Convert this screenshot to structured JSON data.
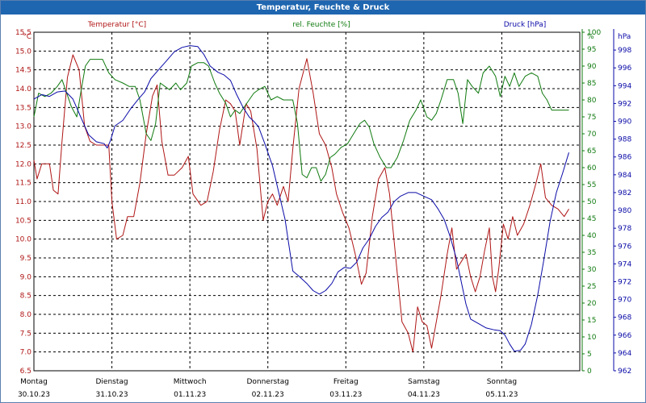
{
  "window": {
    "title": "Temperatur, Feuchte & Druck"
  },
  "colors": {
    "temp": "#b01515",
    "hum": "#0f7a0f",
    "press": "#0a0aa8",
    "grid": "#000000"
  },
  "chart_data": {
    "type": "line",
    "title": "Temperatur, Feuchte & Druck",
    "grid": true,
    "x_labels": [
      {
        "day": "Montag",
        "date": "30.10.23"
      },
      {
        "day": "Dienstag",
        "date": "31.10.23"
      },
      {
        "day": "Mittwoch",
        "date": "01.11.23"
      },
      {
        "day": "Donnerstag",
        "date": "02.11.23"
      },
      {
        "day": "Freitag",
        "date": "03.11.23"
      },
      {
        "day": "Samstag",
        "date": "04.11.23"
      },
      {
        "day": "Sonntag",
        "date": "05.11.23"
      }
    ],
    "x_days": 7,
    "axes": {
      "temp": {
        "label": "Temperatur [°C]",
        "unit": "°C",
        "min": 6.5,
        "max": 15.5,
        "step": 0.5,
        "decimals": 1
      },
      "hum": {
        "label": "rel. Feuchte [%]",
        "unit": "%",
        "min": 0,
        "max": 100,
        "step": 5,
        "decimals": 0
      },
      "press": {
        "label": "Druck [hPa]",
        "unit": "hPa",
        "min": 962,
        "max": 1000,
        "step": 2,
        "decimals": 0
      }
    },
    "series": [
      {
        "name": "Temperatur [°C]",
        "axis": "temp",
        "color": "#b01515",
        "points": [
          [
            0,
            12.1
          ],
          [
            0.04,
            11.6
          ],
          [
            0.1,
            12.0
          ],
          [
            0.2,
            12.0
          ],
          [
            0.25,
            11.3
          ],
          [
            0.31,
            11.2
          ],
          [
            0.36,
            12.6
          ],
          [
            0.43,
            14.3
          ],
          [
            0.5,
            14.9
          ],
          [
            0.58,
            14.5
          ],
          [
            0.65,
            13.0
          ],
          [
            0.72,
            12.6
          ],
          [
            0.8,
            12.5
          ],
          [
            0.88,
            12.5
          ],
          [
            0.96,
            12.5
          ],
          [
            1.0,
            11.0
          ],
          [
            1.06,
            10.0
          ],
          [
            1.14,
            10.1
          ],
          [
            1.2,
            10.6
          ],
          [
            1.28,
            10.6
          ],
          [
            1.36,
            11.5
          ],
          [
            1.44,
            12.8
          ],
          [
            1.52,
            13.8
          ],
          [
            1.58,
            14.1
          ],
          [
            1.64,
            12.6
          ],
          [
            1.72,
            11.7
          ],
          [
            1.8,
            11.7
          ],
          [
            1.9,
            11.9
          ],
          [
            1.98,
            12.2
          ],
          [
            2.04,
            11.2
          ],
          [
            2.14,
            10.9
          ],
          [
            2.22,
            11.0
          ],
          [
            2.3,
            11.8
          ],
          [
            2.38,
            12.9
          ],
          [
            2.46,
            13.7
          ],
          [
            2.52,
            13.6
          ],
          [
            2.58,
            13.4
          ],
          [
            2.64,
            12.5
          ],
          [
            2.72,
            13.6
          ],
          [
            2.78,
            13.4
          ],
          [
            2.86,
            12.4
          ],
          [
            2.94,
            10.5
          ],
          [
            3.0,
            11.0
          ],
          [
            3.06,
            11.2
          ],
          [
            3.12,
            10.9
          ],
          [
            3.2,
            11.4
          ],
          [
            3.26,
            11.0
          ],
          [
            3.32,
            12.4
          ],
          [
            3.4,
            14.0
          ],
          [
            3.5,
            14.8
          ],
          [
            3.58,
            13.9
          ],
          [
            3.66,
            12.8
          ],
          [
            3.74,
            12.5
          ],
          [
            3.82,
            11.9
          ],
          [
            3.88,
            11.2
          ],
          [
            3.96,
            10.7
          ],
          [
            4.04,
            10.3
          ],
          [
            4.12,
            9.6
          ],
          [
            4.2,
            8.8
          ],
          [
            4.26,
            9.1
          ],
          [
            4.34,
            10.6
          ],
          [
            4.42,
            11.6
          ],
          [
            4.5,
            11.9
          ],
          [
            4.56,
            11.2
          ],
          [
            4.64,
            9.5
          ],
          [
            4.72,
            7.8
          ],
          [
            4.8,
            7.5
          ],
          [
            4.86,
            7.0
          ],
          [
            4.92,
            8.2
          ],
          [
            4.98,
            7.8
          ],
          [
            5.04,
            7.7
          ],
          [
            5.1,
            7.1
          ],
          [
            5.16,
            7.8
          ],
          [
            5.22,
            8.5
          ],
          [
            5.3,
            9.6
          ],
          [
            5.36,
            10.3
          ],
          [
            5.42,
            9.2
          ],
          [
            5.48,
            9.4
          ],
          [
            5.54,
            9.6
          ],
          [
            5.6,
            9.0
          ],
          [
            5.66,
            8.6
          ],
          [
            5.72,
            9.0
          ],
          [
            5.78,
            9.7
          ],
          [
            5.84,
            10.3
          ],
          [
            5.88,
            9.0
          ],
          [
            5.92,
            8.6
          ],
          [
            5.96,
            9.2
          ],
          [
            6.02,
            10.4
          ],
          [
            6.08,
            10.0
          ],
          [
            6.14,
            10.6
          ],
          [
            6.2,
            10.1
          ],
          [
            6.28,
            10.4
          ],
          [
            6.36,
            10.9
          ],
          [
            6.44,
            11.5
          ],
          [
            6.5,
            12.0
          ],
          [
            6.56,
            11.1
          ],
          [
            6.64,
            10.9
          ],
          [
            6.72,
            10.8
          ],
          [
            6.8,
            10.6
          ],
          [
            6.86,
            10.8
          ]
        ]
      },
      {
        "name": "rel. Feuchte [%]",
        "axis": "hum",
        "color": "#0f7a0f",
        "points": [
          [
            0,
            75
          ],
          [
            0.06,
            82
          ],
          [
            0.14,
            81
          ],
          [
            0.22,
            82
          ],
          [
            0.3,
            84
          ],
          [
            0.36,
            86
          ],
          [
            0.42,
            82
          ],
          [
            0.48,
            78
          ],
          [
            0.55,
            75
          ],
          [
            0.6,
            82
          ],
          [
            0.66,
            90
          ],
          [
            0.72,
            92
          ],
          [
            0.8,
            92
          ],
          [
            0.88,
            92
          ],
          [
            0.96,
            88
          ],
          [
            1.04,
            86
          ],
          [
            1.14,
            85
          ],
          [
            1.22,
            84
          ],
          [
            1.3,
            84
          ],
          [
            1.36,
            80
          ],
          [
            1.44,
            70
          ],
          [
            1.5,
            68
          ],
          [
            1.56,
            73
          ],
          [
            1.62,
            85
          ],
          [
            1.68,
            84
          ],
          [
            1.74,
            83
          ],
          [
            1.82,
            85
          ],
          [
            1.88,
            83
          ],
          [
            1.96,
            85
          ],
          [
            2.02,
            90
          ],
          [
            2.1,
            91
          ],
          [
            2.18,
            91
          ],
          [
            2.24,
            90
          ],
          [
            2.32,
            85
          ],
          [
            2.38,
            82
          ],
          [
            2.46,
            79
          ],
          [
            2.52,
            75
          ],
          [
            2.58,
            77
          ],
          [
            2.64,
            76
          ],
          [
            2.7,
            78
          ],
          [
            2.76,
            80
          ],
          [
            2.82,
            82
          ],
          [
            2.88,
            83
          ],
          [
            2.96,
            84
          ],
          [
            3.04,
            80
          ],
          [
            3.12,
            81
          ],
          [
            3.2,
            80
          ],
          [
            3.26,
            80
          ],
          [
            3.32,
            80
          ],
          [
            3.38,
            73
          ],
          [
            3.44,
            58
          ],
          [
            3.5,
            57
          ],
          [
            3.56,
            60
          ],
          [
            3.62,
            60
          ],
          [
            3.68,
            56
          ],
          [
            3.74,
            58
          ],
          [
            3.8,
            63
          ],
          [
            3.86,
            64
          ],
          [
            3.94,
            66
          ],
          [
            4.02,
            67
          ],
          [
            4.1,
            70
          ],
          [
            4.18,
            73
          ],
          [
            4.24,
            74
          ],
          [
            4.3,
            72
          ],
          [
            4.36,
            67
          ],
          [
            4.44,
            63
          ],
          [
            4.52,
            60
          ],
          [
            4.58,
            60
          ],
          [
            4.66,
            63
          ],
          [
            4.74,
            68
          ],
          [
            4.82,
            74
          ],
          [
            4.9,
            77
          ],
          [
            4.96,
            80
          ],
          [
            5.04,
            75
          ],
          [
            5.1,
            74
          ],
          [
            5.16,
            76
          ],
          [
            5.22,
            80
          ],
          [
            5.3,
            86
          ],
          [
            5.38,
            86
          ],
          [
            5.44,
            82
          ],
          [
            5.5,
            73
          ],
          [
            5.56,
            86
          ],
          [
            5.62,
            84
          ],
          [
            5.7,
            82
          ],
          [
            5.76,
            88
          ],
          [
            5.84,
            90
          ],
          [
            5.92,
            87
          ],
          [
            5.98,
            81
          ],
          [
            6.04,
            87
          ],
          [
            6.1,
            84
          ],
          [
            6.16,
            88
          ],
          [
            6.22,
            84
          ],
          [
            6.3,
            87
          ],
          [
            6.38,
            88
          ],
          [
            6.46,
            87
          ],
          [
            6.52,
            82
          ],
          [
            6.58,
            80
          ],
          [
            6.64,
            77
          ],
          [
            6.72,
            77
          ],
          [
            6.8,
            77
          ],
          [
            6.86,
            77
          ]
        ]
      },
      {
        "name": "Druck [hPa]",
        "axis": "press",
        "color": "#0a0aa8",
        "points": [
          [
            0,
            992.5
          ],
          [
            0.1,
            993
          ],
          [
            0.2,
            992.8
          ],
          [
            0.3,
            993.3
          ],
          [
            0.4,
            993.4
          ],
          [
            0.5,
            992.5
          ],
          [
            0.6,
            990.5
          ],
          [
            0.7,
            988.5
          ],
          [
            0.8,
            987.7
          ],
          [
            0.9,
            987.5
          ],
          [
            0.94,
            987.0
          ],
          [
            0.98,
            987.8
          ],
          [
            1.04,
            989.5
          ],
          [
            1.14,
            990.1
          ],
          [
            1.24,
            991.4
          ],
          [
            1.34,
            992.5
          ],
          [
            1.42,
            993.3
          ],
          [
            1.5,
            994.8
          ],
          [
            1.6,
            995.8
          ],
          [
            1.7,
            996.8
          ],
          [
            1.8,
            997.8
          ],
          [
            1.9,
            998.3
          ],
          [
            2.0,
            998.5
          ],
          [
            2.1,
            998.4
          ],
          [
            2.18,
            997.5
          ],
          [
            2.26,
            996.2
          ],
          [
            2.36,
            995.5
          ],
          [
            2.44,
            995.2
          ],
          [
            2.52,
            994.6
          ],
          [
            2.6,
            993.0
          ],
          [
            2.68,
            991.6
          ],
          [
            2.76,
            990.5
          ],
          [
            2.82,
            990.0
          ],
          [
            2.88,
            989.4
          ],
          [
            2.96,
            987.5
          ],
          [
            3.06,
            985.0
          ],
          [
            3.14,
            982.0
          ],
          [
            3.22,
            979.0
          ],
          [
            3.28,
            975.5
          ],
          [
            3.32,
            973.2
          ],
          [
            3.4,
            972.6
          ],
          [
            3.5,
            971.8
          ],
          [
            3.58,
            971.0
          ],
          [
            3.66,
            970.6
          ],
          [
            3.74,
            971.0
          ],
          [
            3.82,
            971.8
          ],
          [
            3.9,
            973.1
          ],
          [
            3.98,
            973.6
          ],
          [
            4.06,
            973.5
          ],
          [
            4.14,
            974.2
          ],
          [
            4.22,
            975.8
          ],
          [
            4.3,
            976.8
          ],
          [
            4.38,
            978.2
          ],
          [
            4.46,
            979.2
          ],
          [
            4.54,
            979.8
          ],
          [
            4.62,
            981.0
          ],
          [
            4.7,
            981.6
          ],
          [
            4.8,
            982.0
          ],
          [
            4.9,
            982.0
          ],
          [
            5.0,
            981.6
          ],
          [
            5.1,
            981.2
          ],
          [
            5.18,
            980.2
          ],
          [
            5.26,
            979.0
          ],
          [
            5.34,
            977.0
          ],
          [
            5.42,
            974.5
          ],
          [
            5.48,
            972.0
          ],
          [
            5.54,
            969.5
          ],
          [
            5.6,
            967.8
          ],
          [
            5.7,
            967.3
          ],
          [
            5.8,
            966.8
          ],
          [
            5.9,
            966.6
          ],
          [
            5.98,
            966.5
          ],
          [
            6.04,
            966.0
          ],
          [
            6.1,
            965.0
          ],
          [
            6.16,
            964.2
          ],
          [
            6.24,
            964.3
          ],
          [
            6.3,
            965.0
          ],
          [
            6.38,
            967.2
          ],
          [
            6.46,
            970.5
          ],
          [
            6.54,
            974.5
          ],
          [
            6.62,
            978.8
          ],
          [
            6.7,
            982.0
          ],
          [
            6.78,
            984.2
          ],
          [
            6.86,
            986.5
          ]
        ]
      }
    ]
  }
}
